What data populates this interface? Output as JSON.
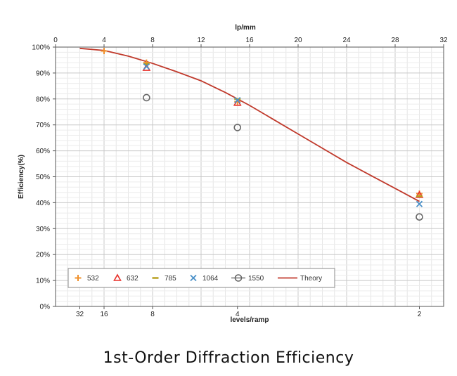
{
  "caption": "1st-Order Diffraction Efficiency",
  "chart_data": {
    "type": "scatter",
    "title": "1st-Order Diffraction Efficiency",
    "xlabel": "levels/ramp",
    "x2label": "lp/mm",
    "ylabel": "Efficiency(%)",
    "xlim": [
      0,
      32
    ],
    "ylim": [
      0,
      100
    ],
    "grid": true,
    "legend_position": "bottom-left",
    "top_axis_ticks": [
      "0",
      "4",
      "8",
      "12",
      "16",
      "20",
      "24",
      "28",
      "32"
    ],
    "bottom_axis_ticks": [
      {
        "label": "32",
        "lp_mm": 2
      },
      {
        "label": "16",
        "lp_mm": 4
      },
      {
        "label": "8",
        "lp_mm": 8
      },
      {
        "label": "4",
        "lp_mm": 15
      },
      {
        "label": "2",
        "lp_mm": 30
      }
    ],
    "y_tick_labels": [
      "0%",
      "10%",
      "20%",
      "30%",
      "40%",
      "50%",
      "60%",
      "70%",
      "80%",
      "90%",
      "100%"
    ],
    "series": [
      {
        "name": "532",
        "marker": "plus",
        "color": "#f0902c",
        "points": [
          {
            "x": 4,
            "y": 98.5
          },
          {
            "x": 7.5,
            "y": 94
          },
          {
            "x": 15,
            "y": 79
          },
          {
            "x": 30,
            "y": 43.5
          }
        ]
      },
      {
        "name": "632",
        "marker": "triangle",
        "color": "#e8312a",
        "points": [
          {
            "x": 7.5,
            "y": 92
          },
          {
            "x": 15,
            "y": 78.5
          },
          {
            "x": 30,
            "y": 43
          }
        ]
      },
      {
        "name": "785",
        "marker": "dash",
        "color": "#b8a020",
        "points": [
          {
            "x": 7.5,
            "y": 93.5
          },
          {
            "x": 15,
            "y": 80
          },
          {
            "x": 30,
            "y": 42.5
          }
        ]
      },
      {
        "name": "1064",
        "marker": "x",
        "color": "#4a90c8",
        "points": [
          {
            "x": 7.5,
            "y": 92.5
          },
          {
            "x": 15,
            "y": 79.5
          },
          {
            "x": 30,
            "y": 39.5
          }
        ]
      },
      {
        "name": "1550",
        "marker": "circle",
        "color": "#666666",
        "points": [
          {
            "x": 7.5,
            "y": 80.5
          },
          {
            "x": 15,
            "y": 69
          },
          {
            "x": 30,
            "y": 34.5
          }
        ]
      },
      {
        "name": "Theory",
        "marker": "line",
        "color": "#c0392b",
        "points": [
          {
            "x": 2,
            "y": 99.5
          },
          {
            "x": 4,
            "y": 98.7
          },
          {
            "x": 6,
            "y": 96.5
          },
          {
            "x": 8,
            "y": 93.7
          },
          {
            "x": 10,
            "y": 90.5
          },
          {
            "x": 12,
            "y": 87
          },
          {
            "x": 14,
            "y": 82.5
          },
          {
            "x": 16,
            "y": 77.5
          },
          {
            "x": 18,
            "y": 72
          },
          {
            "x": 20,
            "y": 66.5
          },
          {
            "x": 22,
            "y": 61
          },
          {
            "x": 24,
            "y": 55.5
          },
          {
            "x": 26,
            "y": 50.5
          },
          {
            "x": 28,
            "y": 45.5
          },
          {
            "x": 30,
            "y": 40.5
          }
        ]
      }
    ]
  }
}
